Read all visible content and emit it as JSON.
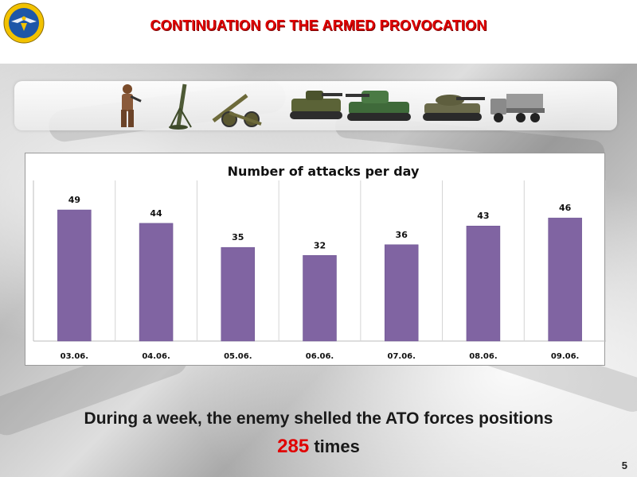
{
  "slide": {
    "title": "CONTINUATION OF THE ARMED PROVOCATION",
    "summary_line": "During a week, the enemy shelled the ATO forces positions",
    "total_number": "285",
    "total_suffix": " times",
    "page_number": "5"
  },
  "colors": {
    "title": "#e00000",
    "bar": "#8064a2",
    "highlight_number": "#e00000"
  },
  "icons": [
    "emblem-icon",
    "soldier-icon",
    "mortar-icon",
    "howitzer-icon",
    "apc-icon",
    "self-propelled-gun-icon",
    "tank-icon",
    "rocket-launcher-truck-icon"
  ],
  "chart_data": {
    "type": "bar",
    "title": "Number of attacks per day",
    "categories": [
      "03.06.",
      "04.06.",
      "05.06.",
      "06.06.",
      "07.06.",
      "08.06.",
      "09.06."
    ],
    "values": [
      49,
      44,
      35,
      32,
      36,
      43,
      46
    ],
    "xlabel": "",
    "ylabel": "",
    "ylim": [
      0,
      60
    ],
    "grid": "vertical",
    "data_labels": true
  }
}
